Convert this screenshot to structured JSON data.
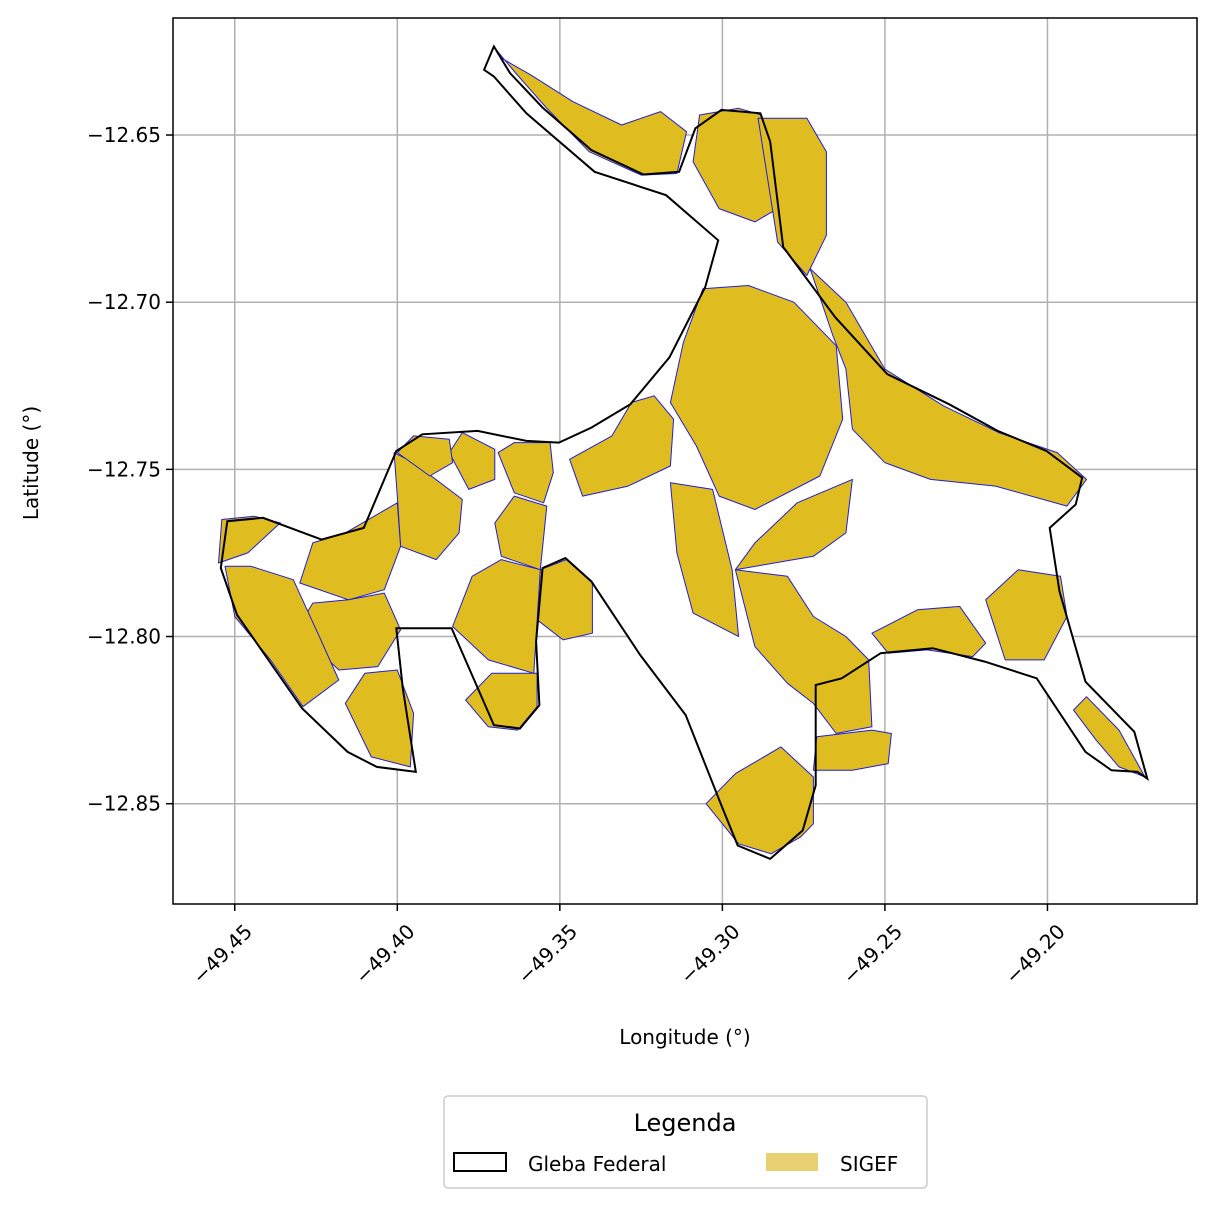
{
  "chart_data": {
    "type": "map",
    "xlabel": "Longitude (°)",
    "ylabel": "Latitude (°)",
    "xlim": [
      -49.469,
      -49.154
    ],
    "ylim": [
      -12.88,
      -12.615
    ],
    "x_ticks": [
      {
        "value": -49.45,
        "label": "−49.45"
      },
      {
        "value": -49.4,
        "label": "−49.40"
      },
      {
        "value": -49.35,
        "label": "−49.35"
      },
      {
        "value": -49.3,
        "label": "−49.30"
      },
      {
        "value": -49.25,
        "label": "−49.25"
      },
      {
        "value": -49.2,
        "label": "−49.20"
      }
    ],
    "y_ticks": [
      {
        "value": -12.65,
        "label": "−12.65"
      },
      {
        "value": -12.7,
        "label": "−12.70"
      },
      {
        "value": -12.75,
        "label": "−12.75"
      },
      {
        "value": -12.8,
        "label": "−12.80"
      },
      {
        "value": -12.85,
        "label": "−12.85"
      }
    ],
    "grid": true,
    "x_tick_rotation": 45,
    "legend": {
      "title": "Legenda",
      "placement": "bottom-center",
      "entries": [
        {
          "label": "Gleba Federal",
          "style": "outline",
          "edge_color": "#000000"
        },
        {
          "label": "SIGEF",
          "style": "fill",
          "fill_color": "#e8d172"
        }
      ]
    },
    "colors": {
      "sigef_fill": "#dfbc20",
      "sigef_edge": "#1f1fd6",
      "gleba_edge": "#000000",
      "grid": "#b0b0b0"
    },
    "gleba_boundary": [
      [
        -49.3703,
        -12.6235
      ],
      [
        -49.3653,
        -12.6315
      ],
      [
        -49.3553,
        -12.6418
      ],
      [
        -49.3403,
        -12.6545
      ],
      [
        -49.3243,
        -12.6618
      ],
      [
        -49.3133,
        -12.661
      ],
      [
        -49.3083,
        -12.648
      ],
      [
        -49.3003,
        -12.6425
      ],
      [
        -49.2883,
        -12.6435
      ],
      [
        -49.2853,
        -12.652
      ],
      [
        -49.2813,
        -12.6835
      ],
      [
        -49.2653,
        -12.7045
      ],
      [
        -49.2493,
        -12.7215
      ],
      [
        -49.2303,
        -12.7305
      ],
      [
        -49.2153,
        -12.7385
      ],
      [
        -49.2003,
        -12.7445
      ],
      [
        -49.1893,
        -12.7525
      ],
      [
        -49.1913,
        -12.7605
      ],
      [
        -49.1993,
        -12.7675
      ],
      [
        -49.1963,
        -12.7865
      ],
      [
        -49.1883,
        -12.8135
      ],
      [
        -49.1733,
        -12.8285
      ],
      [
        -49.1693,
        -12.8425
      ],
      [
        -49.1723,
        -12.8405
      ],
      [
        -49.1803,
        -12.84
      ],
      [
        -49.1883,
        -12.8345
      ],
      [
        -49.2033,
        -12.8125
      ],
      [
        -49.2193,
        -12.8075
      ],
      [
        -49.2353,
        -12.8035
      ],
      [
        -49.2513,
        -12.805
      ],
      [
        -49.2633,
        -12.8125
      ],
      [
        -49.2713,
        -12.8145
      ],
      [
        -49.2713,
        -12.8445
      ],
      [
        -49.2753,
        -12.858
      ],
      [
        -49.2853,
        -12.8665
      ],
      [
        -49.2953,
        -12.8625
      ],
      [
        -49.3003,
        -12.8505
      ],
      [
        -49.3113,
        -12.8235
      ],
      [
        -49.3253,
        -12.8055
      ],
      [
        -49.3403,
        -12.7835
      ],
      [
        -49.3483,
        -12.7765
      ],
      [
        -49.3553,
        -12.7795
      ],
      [
        -49.3573,
        -12.8015
      ],
      [
        -49.3563,
        -12.8205
      ],
      [
        -49.3623,
        -12.8275
      ],
      [
        -49.3703,
        -12.8265
      ],
      [
        -49.3833,
        -12.7975
      ],
      [
        -49.4003,
        -12.7975
      ],
      [
        -49.3983,
        -12.8155
      ],
      [
        -49.3943,
        -12.8405
      ],
      [
        -49.4063,
        -12.839
      ],
      [
        -49.4153,
        -12.8345
      ],
      [
        -49.4293,
        -12.8215
      ],
      [
        -49.4493,
        -12.7935
      ],
      [
        -49.4543,
        -12.7795
      ],
      [
        -49.4523,
        -12.7655
      ],
      [
        -49.4413,
        -12.7645
      ],
      [
        -49.4233,
        -12.771
      ],
      [
        -49.4103,
        -12.7675
      ],
      [
        -49.4003,
        -12.7445
      ],
      [
        -49.3923,
        -12.7395
      ],
      [
        -49.3753,
        -12.7385
      ],
      [
        -49.3603,
        -12.7415
      ],
      [
        -49.3503,
        -12.742
      ],
      [
        -49.3403,
        -12.7375
      ],
      [
        -49.3283,
        -12.7305
      ],
      [
        -49.3163,
        -12.7165
      ],
      [
        -49.3053,
        -12.6955
      ],
      [
        -49.3013,
        -12.6815
      ],
      [
        -49.3173,
        -12.668
      ],
      [
        -49.3393,
        -12.661
      ],
      [
        -49.3603,
        -12.6435
      ],
      [
        -49.3703,
        -12.6325
      ],
      [
        -49.3733,
        -12.6305
      ]
    ],
    "sigef_parcels": [
      [
        [
          -49.37,
          -12.624
        ],
        [
          -49.364,
          -12.631
        ],
        [
          -49.354,
          -12.642
        ],
        [
          -49.341,
          -12.655
        ],
        [
          -49.325,
          -12.662
        ],
        [
          -49.314,
          -12.6615
        ],
        [
          -49.311,
          -12.649
        ],
        [
          -49.319,
          -12.643
        ],
        [
          -49.331,
          -12.647
        ],
        [
          -49.346,
          -12.64
        ],
        [
          -49.359,
          -12.632
        ],
        [
          -49.368,
          -12.627
        ]
      ],
      [
        [
          -49.307,
          -12.644
        ],
        [
          -49.295,
          -12.642
        ],
        [
          -49.288,
          -12.644
        ],
        [
          -49.285,
          -12.653
        ],
        [
          -49.283,
          -12.672
        ],
        [
          -49.29,
          -12.676
        ],
        [
          -49.301,
          -12.672
        ],
        [
          -49.309,
          -12.658
        ]
      ],
      [
        [
          -49.289,
          -12.645
        ],
        [
          -49.274,
          -12.645
        ],
        [
          -49.268,
          -12.655
        ],
        [
          -49.268,
          -12.68
        ],
        [
          -49.274,
          -12.692
        ],
        [
          -49.283,
          -12.682
        ]
      ],
      [
        [
          -49.273,
          -12.69
        ],
        [
          -49.262,
          -12.7
        ],
        [
          -49.25,
          -12.72
        ],
        [
          -49.232,
          -12.731
        ],
        [
          -49.215,
          -12.739
        ],
        [
          -49.197,
          -12.745
        ],
        [
          -49.188,
          -12.753
        ],
        [
          -49.194,
          -12.761
        ],
        [
          -49.216,
          -12.755
        ],
        [
          -49.236,
          -12.753
        ],
        [
          -49.25,
          -12.748
        ],
        [
          -49.26,
          -12.738
        ],
        [
          -49.262,
          -12.72
        ],
        [
          -49.266,
          -12.71
        ]
      ],
      [
        [
          -49.306,
          -12.696
        ],
        [
          -49.292,
          -12.695
        ],
        [
          -49.278,
          -12.7
        ],
        [
          -49.265,
          -12.713
        ],
        [
          -49.263,
          -12.735
        ],
        [
          -49.27,
          -12.752
        ],
        [
          -49.29,
          -12.762
        ],
        [
          -49.301,
          -12.758
        ],
        [
          -49.308,
          -12.743
        ],
        [
          -49.316,
          -12.73
        ],
        [
          -49.312,
          -12.712
        ]
      ],
      [
        [
          -49.328,
          -12.73
        ],
        [
          -49.334,
          -12.74
        ],
        [
          -49.347,
          -12.747
        ],
        [
          -49.343,
          -12.758
        ],
        [
          -49.329,
          -12.755
        ],
        [
          -49.316,
          -12.749
        ],
        [
          -49.315,
          -12.735
        ],
        [
          -49.321,
          -12.728
        ]
      ],
      [
        [
          -49.26,
          -12.753
        ],
        [
          -49.277,
          -12.76
        ],
        [
          -49.29,
          -12.772
        ],
        [
          -49.296,
          -12.78
        ],
        [
          -49.272,
          -12.776
        ],
        [
          -49.262,
          -12.769
        ]
      ],
      [
        [
          -49.316,
          -12.754
        ],
        [
          -49.303,
          -12.756
        ],
        [
          -49.297,
          -12.78
        ],
        [
          -49.295,
          -12.8
        ],
        [
          -49.309,
          -12.793
        ],
        [
          -49.314,
          -12.775
        ]
      ],
      [
        [
          -49.296,
          -12.78
        ],
        [
          -49.28,
          -12.782
        ],
        [
          -49.272,
          -12.794
        ],
        [
          -49.262,
          -12.8
        ],
        [
          -49.255,
          -12.807
        ],
        [
          -49.254,
          -12.827
        ],
        [
          -49.265,
          -12.829
        ],
        [
          -49.272,
          -12.82
        ],
        [
          -49.28,
          -12.814
        ],
        [
          -49.29,
          -12.803
        ]
      ],
      [
        [
          -49.254,
          -12.828
        ],
        [
          -49.248,
          -12.829
        ],
        [
          -49.249,
          -12.838
        ],
        [
          -49.26,
          -12.84
        ],
        [
          -49.272,
          -12.84
        ],
        [
          -49.271,
          -12.83
        ]
      ],
      [
        [
          -49.305,
          -12.85
        ],
        [
          -49.296,
          -12.841
        ],
        [
          -49.282,
          -12.833
        ],
        [
          -49.272,
          -12.842
        ],
        [
          -49.272,
          -12.856
        ],
        [
          -49.276,
          -12.86
        ],
        [
          -49.285,
          -12.865
        ],
        [
          -49.295,
          -12.862
        ]
      ],
      [
        [
          -49.254,
          -12.799
        ],
        [
          -49.24,
          -12.792
        ],
        [
          -49.227,
          -12.791
        ],
        [
          -49.219,
          -12.802
        ],
        [
          -49.223,
          -12.806
        ],
        [
          -49.237,
          -12.804
        ],
        [
          -49.249,
          -12.805
        ]
      ],
      [
        [
          -49.219,
          -12.789
        ],
        [
          -49.209,
          -12.78
        ],
        [
          -49.196,
          -12.782
        ],
        [
          -49.194,
          -12.794
        ],
        [
          -49.201,
          -12.807
        ],
        [
          -49.213,
          -12.807
        ]
      ],
      [
        [
          -49.188,
          -12.818
        ],
        [
          -49.178,
          -12.828
        ],
        [
          -49.17,
          -12.842
        ],
        [
          -49.178,
          -12.839
        ],
        [
          -49.185,
          -12.831
        ],
        [
          -49.192,
          -12.822
        ]
      ],
      [
        [
          -49.34,
          -12.784
        ],
        [
          -49.348,
          -12.777
        ],
        [
          -49.356,
          -12.78
        ],
        [
          -49.357,
          -12.795
        ],
        [
          -49.349,
          -12.801
        ],
        [
          -49.34,
          -12.799
        ]
      ],
      [
        [
          -49.356,
          -12.78
        ],
        [
          -49.368,
          -12.777
        ],
        [
          -49.377,
          -12.782
        ],
        [
          -49.383,
          -12.797
        ],
        [
          -49.372,
          -12.807
        ],
        [
          -49.358,
          -12.811
        ]
      ],
      [
        [
          -49.357,
          -12.811
        ],
        [
          -49.371,
          -12.811
        ],
        [
          -49.379,
          -12.819
        ],
        [
          -49.372,
          -12.827
        ],
        [
          -49.363,
          -12.828
        ],
        [
          -49.357,
          -12.821
        ]
      ],
      [
        [
          -49.38,
          -12.759
        ],
        [
          -49.395,
          -12.748
        ],
        [
          -49.401,
          -12.745
        ],
        [
          -49.4,
          -12.758
        ],
        [
          -49.399,
          -12.773
        ],
        [
          -49.388,
          -12.777
        ],
        [
          -49.381,
          -12.769
        ]
      ],
      [
        [
          -49.399,
          -12.773
        ],
        [
          -49.4,
          -12.76
        ],
        [
          -49.416,
          -12.769
        ],
        [
          -49.426,
          -12.772
        ],
        [
          -49.43,
          -12.784
        ],
        [
          -49.415,
          -12.789
        ],
        [
          -49.404,
          -12.786
        ]
      ],
      [
        [
          -49.404,
          -12.787
        ],
        [
          -49.415,
          -12.789
        ],
        [
          -49.426,
          -12.79
        ],
        [
          -49.431,
          -12.798
        ],
        [
          -49.418,
          -12.81
        ],
        [
          -49.406,
          -12.809
        ],
        [
          -49.399,
          -12.798
        ]
      ],
      [
        [
          -49.4,
          -12.81
        ],
        [
          -49.41,
          -12.811
        ],
        [
          -49.416,
          -12.82
        ],
        [
          -49.408,
          -12.836
        ],
        [
          -49.396,
          -12.839
        ],
        [
          -49.395,
          -12.823
        ]
      ],
      [
        [
          -49.432,
          -12.783
        ],
        [
          -49.445,
          -12.779
        ],
        [
          -49.453,
          -12.779
        ],
        [
          -49.45,
          -12.794
        ],
        [
          -49.439,
          -12.807
        ],
        [
          -49.429,
          -12.821
        ],
        [
          -49.418,
          -12.813
        ],
        [
          -49.424,
          -12.8
        ]
      ],
      [
        [
          -49.455,
          -12.778
        ],
        [
          -49.454,
          -12.765
        ],
        [
          -49.444,
          -12.764
        ],
        [
          -49.436,
          -12.766
        ],
        [
          -49.446,
          -12.775
        ]
      ],
      [
        [
          -49.37,
          -12.744
        ],
        [
          -49.38,
          -12.739
        ],
        [
          -49.384,
          -12.745
        ],
        [
          -49.378,
          -12.756
        ],
        [
          -49.37,
          -12.753
        ]
      ],
      [
        [
          -49.369,
          -12.745
        ],
        [
          -49.364,
          -12.742
        ],
        [
          -49.353,
          -12.742
        ],
        [
          -49.352,
          -12.751
        ],
        [
          -49.355,
          -12.76
        ],
        [
          -49.364,
          -12.757
        ]
      ],
      [
        [
          -49.364,
          -12.758
        ],
        [
          -49.354,
          -12.761
        ],
        [
          -49.356,
          -12.78
        ],
        [
          -49.368,
          -12.776
        ],
        [
          -49.37,
          -12.766
        ]
      ],
      [
        [
          -49.384,
          -12.741
        ],
        [
          -49.395,
          -12.74
        ],
        [
          -49.4,
          -12.745
        ],
        [
          -49.39,
          -12.752
        ],
        [
          -49.383,
          -12.748
        ]
      ]
    ]
  }
}
